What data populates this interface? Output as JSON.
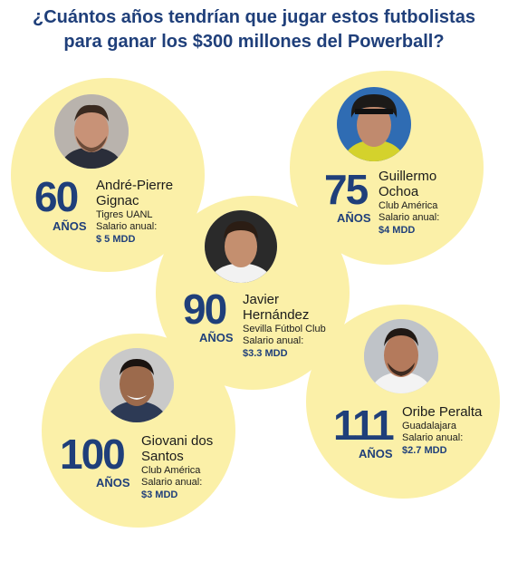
{
  "title": {
    "line1": "¿Cuántos años tendrían que jugar estos futbolistas",
    "line2": "para ganar los $300 millones del Powerball?"
  },
  "colors": {
    "circle": "#fbf0a8",
    "accent": "#1f3f7a"
  },
  "players": [
    {
      "years": "60",
      "unit": "AÑOS",
      "name_line1": "André-Pierre",
      "name_line2": "Gignac",
      "club": "Tigres UANL",
      "salary_label": "Salario anual:",
      "salary": "$ 5 MDD"
    },
    {
      "years": "75",
      "unit": "AÑOS",
      "name_line1": "Guillermo",
      "name_line2": "Ochoa",
      "club": "Club América",
      "salary_label": "Salario anual:",
      "salary": "$4 MDD"
    },
    {
      "years": "90",
      "unit": "AÑOS",
      "name_line1": "Javier",
      "name_line2": "Hernández",
      "club": "Sevilla Fútbol Club",
      "salary_label": "Salario anual:",
      "salary": "$3.3 MDD"
    },
    {
      "years": "111",
      "unit": "AÑOS",
      "name_line1": "Oribe Peralta",
      "name_line2": "",
      "club": "Guadalajara",
      "salary_label": "Salario anual:",
      "salary": "$2.7 MDD"
    },
    {
      "years": "100",
      "unit": "AÑOS",
      "name_line1": "Giovani dos",
      "name_line2": "Santos",
      "club": "Club América",
      "salary_label": "Salario anual:",
      "salary": "$3 MDD"
    }
  ]
}
